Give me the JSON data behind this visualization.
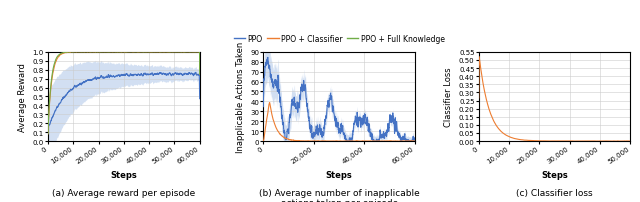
{
  "fig_width": 6.4,
  "fig_height": 2.03,
  "dpi": 100,
  "panel_a": {
    "caption": "(a) Average reward per episode",
    "xlabel": "Steps",
    "ylabel": "Average Reward",
    "xlim": [
      0,
      60000
    ],
    "ylim": [
      0.0,
      1.0
    ],
    "xticks": [
      0,
      10000,
      20000,
      30000,
      40000,
      50000,
      60000
    ],
    "xtick_labels": [
      "0",
      "10,000",
      "20,000",
      "30,000",
      "40,000",
      "50,000",
      "60,000"
    ],
    "yticks": [
      0.0,
      0.1,
      0.2,
      0.3,
      0.4,
      0.5,
      0.6,
      0.7,
      0.8,
      0.9,
      1.0
    ],
    "color_ppo": "#4472C4",
    "color_ppo_classifier": "#ED7D31",
    "color_full_knowledge": "#70AD47",
    "shade_color": "#AEC6E8"
  },
  "panel_b": {
    "caption": "(b) Average number of inapplicable\nactions taken per episode",
    "xlabel": "Steps",
    "ylabel": "Inapplicable Actions Taken",
    "xlim": [
      0,
      60000
    ],
    "ylim": [
      0,
      90
    ],
    "xticks": [
      0,
      20000,
      40000,
      60000
    ],
    "xtick_labels": [
      "0",
      "20,000",
      "40,000",
      "60,000"
    ],
    "yticks": [
      0,
      10,
      20,
      30,
      40,
      50,
      60,
      70,
      80,
      90
    ],
    "color_ppo": "#4472C4",
    "color_ppo_classifier": "#ED7D31",
    "shade_color": "#AEC6E8"
  },
  "panel_c": {
    "caption": "(c) Classifier loss",
    "xlabel": "Steps",
    "ylabel": "Classifier Loss",
    "xlim": [
      0,
      50000
    ],
    "ylim": [
      0.0,
      0.55
    ],
    "xticks": [
      0,
      10000,
      20000,
      30000,
      40000,
      50000
    ],
    "xtick_labels": [
      "0",
      "10,000",
      "20,000",
      "30,000",
      "40,000",
      "50,000"
    ],
    "yticks": [
      0.0,
      0.05,
      0.1,
      0.15,
      0.2,
      0.25,
      0.3,
      0.35,
      0.4,
      0.45,
      0.5,
      0.55
    ],
    "color_classifier": "#ED7D31"
  },
  "legend_labels": [
    "PPO",
    "PPO + Classifier",
    "PPO + Full Knowledge"
  ],
  "legend_colors": [
    "#4472C4",
    "#ED7D31",
    "#70AD47"
  ],
  "caption_fontsize": 6.5,
  "label_fontsize": 6.0,
  "tick_fontsize": 5.0,
  "legend_fontsize": 5.5
}
